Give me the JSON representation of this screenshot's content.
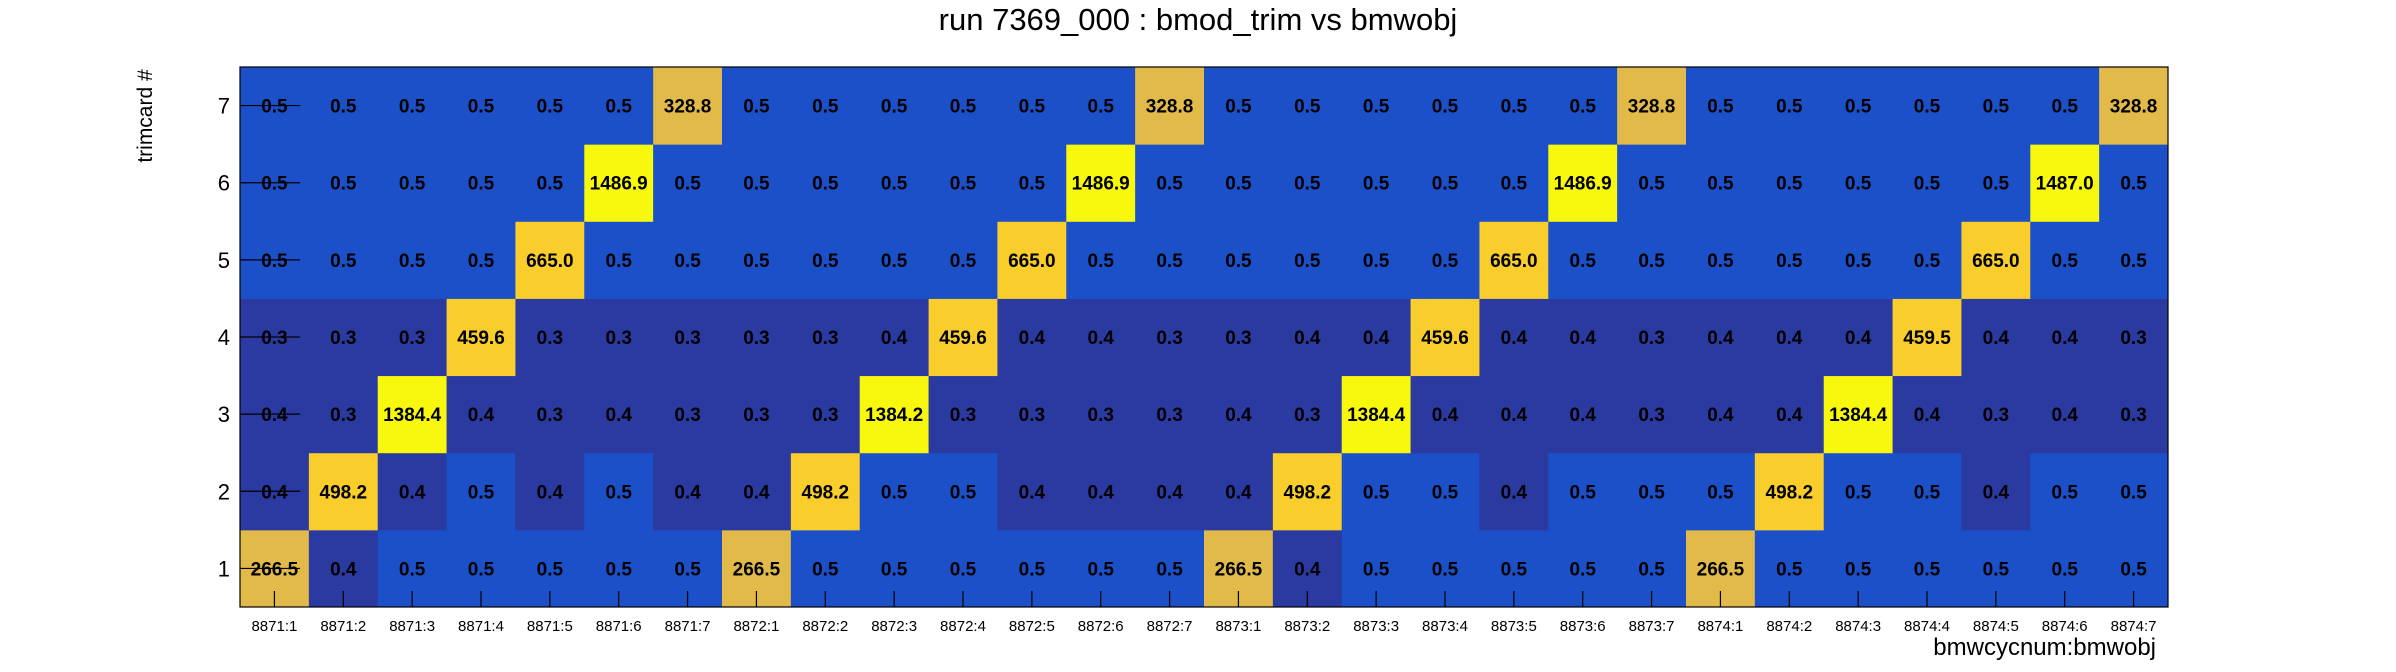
{
  "chart_data": {
    "type": "heatmap",
    "title": "run 7369_000 : bmod_trim vs bmwobj",
    "xlabel": "bmwcycnum:bmwobj",
    "ylabel": "trimcard #",
    "x_categories": [
      "8871:1",
      "8871:2",
      "8871:3",
      "8871:4",
      "8871:5",
      "8871:6",
      "8871:7",
      "8872:1",
      "8872:2",
      "8872:3",
      "8872:4",
      "8872:5",
      "8872:6",
      "8872:7",
      "8873:1",
      "8873:2",
      "8873:3",
      "8873:4",
      "8873:5",
      "8873:6",
      "8873:7",
      "8874:1",
      "8874:2",
      "8874:3",
      "8874:4",
      "8874:5",
      "8874:6",
      "8874:7"
    ],
    "y_categories": [
      "1",
      "2",
      "3",
      "4",
      "5",
      "6",
      "7"
    ],
    "values": [
      [
        "266.5",
        "0.4",
        "0.5",
        "0.5",
        "0.5",
        "0.5",
        "0.5",
        "266.5",
        "0.5",
        "0.5",
        "0.5",
        "0.5",
        "0.5",
        "0.5",
        "266.5",
        "0.4",
        "0.5",
        "0.5",
        "0.5",
        "0.5",
        "0.5",
        "266.5",
        "0.5",
        "0.5",
        "0.5",
        "0.5",
        "0.5",
        "0.5"
      ],
      [
        "0.4",
        "498.2",
        "0.4",
        "0.5",
        "0.4",
        "0.5",
        "0.4",
        "0.4",
        "498.2",
        "0.5",
        "0.5",
        "0.4",
        "0.4",
        "0.4",
        "0.4",
        "498.2",
        "0.5",
        "0.5",
        "0.4",
        "0.5",
        "0.5",
        "0.5",
        "498.2",
        "0.5",
        "0.5",
        "0.4",
        "0.5",
        "0.5"
      ],
      [
        "0.4",
        "0.3",
        "1384.4",
        "0.4",
        "0.3",
        "0.4",
        "0.3",
        "0.3",
        "0.3",
        "1384.2",
        "0.3",
        "0.3",
        "0.3",
        "0.3",
        "0.4",
        "0.3",
        "1384.4",
        "0.4",
        "0.4",
        "0.4",
        "0.3",
        "0.4",
        "0.4",
        "1384.4",
        "0.4",
        "0.3",
        "0.4",
        "0.3"
      ],
      [
        "0.3",
        "0.3",
        "0.3",
        "459.6",
        "0.3",
        "0.3",
        "0.3",
        "0.3",
        "0.3",
        "0.4",
        "459.6",
        "0.4",
        "0.4",
        "0.3",
        "0.3",
        "0.4",
        "0.4",
        "459.6",
        "0.4",
        "0.4",
        "0.3",
        "0.4",
        "0.4",
        "0.4",
        "459.5",
        "0.4",
        "0.4",
        "0.3"
      ],
      [
        "0.5",
        "0.5",
        "0.5",
        "0.5",
        "665.0",
        "0.5",
        "0.5",
        "0.5",
        "0.5",
        "0.5",
        "0.5",
        "665.0",
        "0.5",
        "0.5",
        "0.5",
        "0.5",
        "0.5",
        "0.5",
        "665.0",
        "0.5",
        "0.5",
        "0.5",
        "0.5",
        "0.5",
        "0.5",
        "665.0",
        "0.5",
        "0.5"
      ],
      [
        "0.5",
        "0.5",
        "0.5",
        "0.5",
        "0.5",
        "1486.9",
        "0.5",
        "0.5",
        "0.5",
        "0.5",
        "0.5",
        "0.5",
        "1486.9",
        "0.5",
        "0.5",
        "0.5",
        "0.5",
        "0.5",
        "0.5",
        "1486.9",
        "0.5",
        "0.5",
        "0.5",
        "0.5",
        "0.5",
        "0.5",
        "1487.0",
        "0.5"
      ],
      [
        "0.5",
        "0.5",
        "0.5",
        "0.5",
        "0.5",
        "0.5",
        "328.8",
        "0.5",
        "0.5",
        "0.5",
        "0.5",
        "0.5",
        "0.5",
        "328.8",
        "0.5",
        "0.5",
        "0.5",
        "0.5",
        "0.5",
        "0.5",
        "328.8",
        "0.5",
        "0.5",
        "0.5",
        "0.5",
        "0.5",
        "0.5",
        "328.8"
      ]
    ],
    "colors": {
      "low_dark": "#2a3aa0",
      "low": "#1c50c8",
      "mid_gold": "#e1ba4a",
      "gold": "#f8cd2c",
      "yellow": "#f8f80e"
    },
    "grid": false,
    "legend": "none"
  }
}
